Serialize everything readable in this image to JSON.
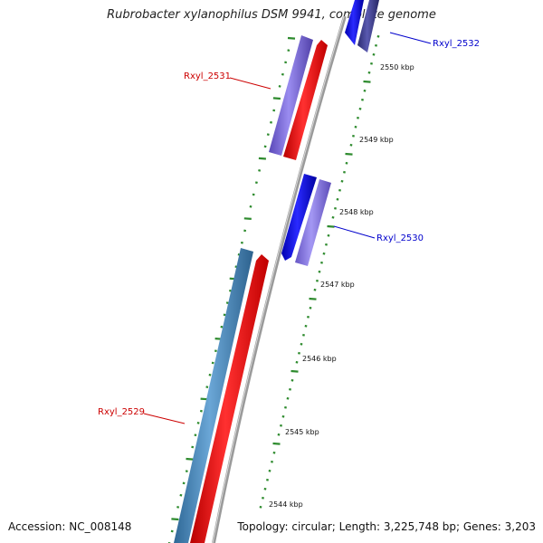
{
  "title": "Rubrobacter xylanophilus DSM 9941, complete genome",
  "footer": {
    "accession": "Accession: NC_008148",
    "topology": "Topology: circular; Length: 3,225,748 bp; Genes: 3,203"
  },
  "colors": {
    "backbone": "#8c8c8c",
    "tick": "#2e8b2e",
    "label_red": "#cc0000",
    "label_blue": "#0000cc",
    "gene_purple": "#7b68d8",
    "gene_red": "#ff0000",
    "gene_blue": "#1010ff",
    "gene_navy": "#3a3a8a",
    "gene_lavender": "#8877dd",
    "gene_steel": "#4a86b8"
  },
  "scale": {
    "unit": "kbp",
    "ticks": [
      {
        "value": 2544,
        "label": "2544 kbp"
      },
      {
        "value": 2545,
        "label": "2545 kbp"
      },
      {
        "value": 2546,
        "label": "2546 kbp"
      },
      {
        "value": 2547,
        "label": "2547 kbp"
      },
      {
        "value": 2548,
        "label": "2548 kbp"
      },
      {
        "value": 2549,
        "label": "2549 kbp"
      },
      {
        "value": 2550,
        "label": "2550 kbp"
      }
    ]
  },
  "genes": [
    {
      "label": "Rxyl_2532",
      "label_color": "blue"
    },
    {
      "label": "Rxyl_2531",
      "label_color": "red"
    },
    {
      "label": "Rxyl_2530",
      "label_color": "blue"
    },
    {
      "label": "Rxyl_2529",
      "label_color": "red"
    }
  ]
}
